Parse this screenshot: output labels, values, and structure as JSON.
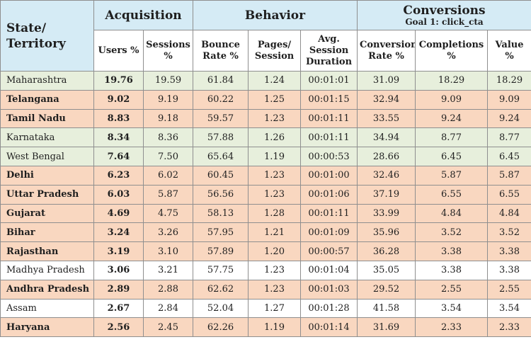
{
  "header": {
    "state_label": "State/ Territory",
    "groups": {
      "acquisition": "Acquisition",
      "behavior": "Behavior",
      "conversions": "Conversions",
      "conversions_goal": "Goal 1: click_cta"
    },
    "columns": {
      "users": "Users %",
      "sessions": "Sessions %",
      "bounce_rate": "Bounce Rate %",
      "pages_session": "Pages/ Session",
      "avg_session_duration": "Avg. Session Duration",
      "conversion_rate": "Conversion Rate %",
      "completions": "Completions %",
      "value": "Value %"
    }
  },
  "row_colors": {
    "green": "#e7efdc",
    "orange": "#f9d7c0",
    "white": "#ffffff",
    "header": "#d5ebf5"
  },
  "rows": [
    {
      "state": "Maharashtra",
      "color": "green",
      "bold": false,
      "users": "19.76",
      "sessions": "19.59",
      "bounce_rate": "61.84",
      "pages_session": "1.24",
      "avg_session_duration": "00:01:01",
      "conversion_rate": "31.09",
      "completions": "18.29",
      "value": "18.29"
    },
    {
      "state": "Telangana",
      "color": "orange",
      "bold": true,
      "users": "9.02",
      "sessions": "9.19",
      "bounce_rate": "60.22",
      "pages_session": "1.25",
      "avg_session_duration": "00:01:15",
      "conversion_rate": "32.94",
      "completions": "9.09",
      "value": "9.09"
    },
    {
      "state": "Tamil Nadu",
      "color": "orange",
      "bold": true,
      "users": "8.83",
      "sessions": "9.18",
      "bounce_rate": "59.57",
      "pages_session": "1.23",
      "avg_session_duration": "00:01:11",
      "conversion_rate": "33.55",
      "completions": "9.24",
      "value": "9.24"
    },
    {
      "state": "Karnataka",
      "color": "green",
      "bold": false,
      "users": "8.34",
      "sessions": "8.36",
      "bounce_rate": "57.88",
      "pages_session": "1.26",
      "avg_session_duration": "00:01:11",
      "conversion_rate": "34.94",
      "completions": "8.77",
      "value": "8.77"
    },
    {
      "state": "West Bengal",
      "color": "green",
      "bold": false,
      "users": "7.64",
      "sessions": "7.50",
      "bounce_rate": "65.64",
      "pages_session": "1.19",
      "avg_session_duration": "00:00:53",
      "conversion_rate": "28.66",
      "completions": "6.45",
      "value": "6.45"
    },
    {
      "state": "Delhi",
      "color": "orange",
      "bold": true,
      "users": "6.23",
      "sessions": "6.02",
      "bounce_rate": "60.45",
      "pages_session": "1.23",
      "avg_session_duration": "00:01:00",
      "conversion_rate": "32.46",
      "completions": "5.87",
      "value": "5.87"
    },
    {
      "state": "Uttar Pradesh",
      "color": "orange",
      "bold": true,
      "users": "6.03",
      "sessions": "5.87",
      "bounce_rate": "56.56",
      "pages_session": "1.23",
      "avg_session_duration": "00:01:06",
      "conversion_rate": "37.19",
      "completions": "6.55",
      "value": "6.55"
    },
    {
      "state": "Gujarat",
      "color": "orange",
      "bold": true,
      "users": "4.69",
      "sessions": "4.75",
      "bounce_rate": "58.13",
      "pages_session": "1.28",
      "avg_session_duration": "00:01:11",
      "conversion_rate": "33.99",
      "completions": "4.84",
      "value": "4.84"
    },
    {
      "state": "Bihar",
      "color": "orange",
      "bold": true,
      "users": "3.24",
      "sessions": "3.26",
      "bounce_rate": "57.95",
      "pages_session": "1.21",
      "avg_session_duration": "00:01:09",
      "conversion_rate": "35.96",
      "completions": "3.52",
      "value": "3.52"
    },
    {
      "state": "Rajasthan",
      "color": "orange",
      "bold": true,
      "users": "3.19",
      "sessions": "3.10",
      "bounce_rate": "57.89",
      "pages_session": "1.20",
      "avg_session_duration": "00:00:57",
      "conversion_rate": "36.28",
      "completions": "3.38",
      "value": "3.38"
    },
    {
      "state": "Madhya Pradesh",
      "color": "white",
      "bold": false,
      "users": "3.06",
      "sessions": "3.21",
      "bounce_rate": "57.75",
      "pages_session": "1.23",
      "avg_session_duration": "00:01:04",
      "conversion_rate": "35.05",
      "completions": "3.38",
      "value": "3.38"
    },
    {
      "state": "Andhra Pradesh",
      "color": "orange",
      "bold": true,
      "users": "2.89",
      "sessions": "2.88",
      "bounce_rate": "62.62",
      "pages_session": "1.23",
      "avg_session_duration": "00:01:03",
      "conversion_rate": "29.52",
      "completions": "2.55",
      "value": "2.55"
    },
    {
      "state": "Assam",
      "color": "white",
      "bold": false,
      "users": "2.67",
      "sessions": "2.84",
      "bounce_rate": "52.04",
      "pages_session": "1.27",
      "avg_session_duration": "00:01:28",
      "conversion_rate": "41.58",
      "completions": "3.54",
      "value": "3.54"
    },
    {
      "state": "Haryana",
      "color": "orange",
      "bold": true,
      "users": "2.56",
      "sessions": "2.45",
      "bounce_rate": "62.26",
      "pages_session": "1.19",
      "avg_session_duration": "00:01:14",
      "conversion_rate": "31.69",
      "completions": "2.33",
      "value": "2.33"
    }
  ]
}
